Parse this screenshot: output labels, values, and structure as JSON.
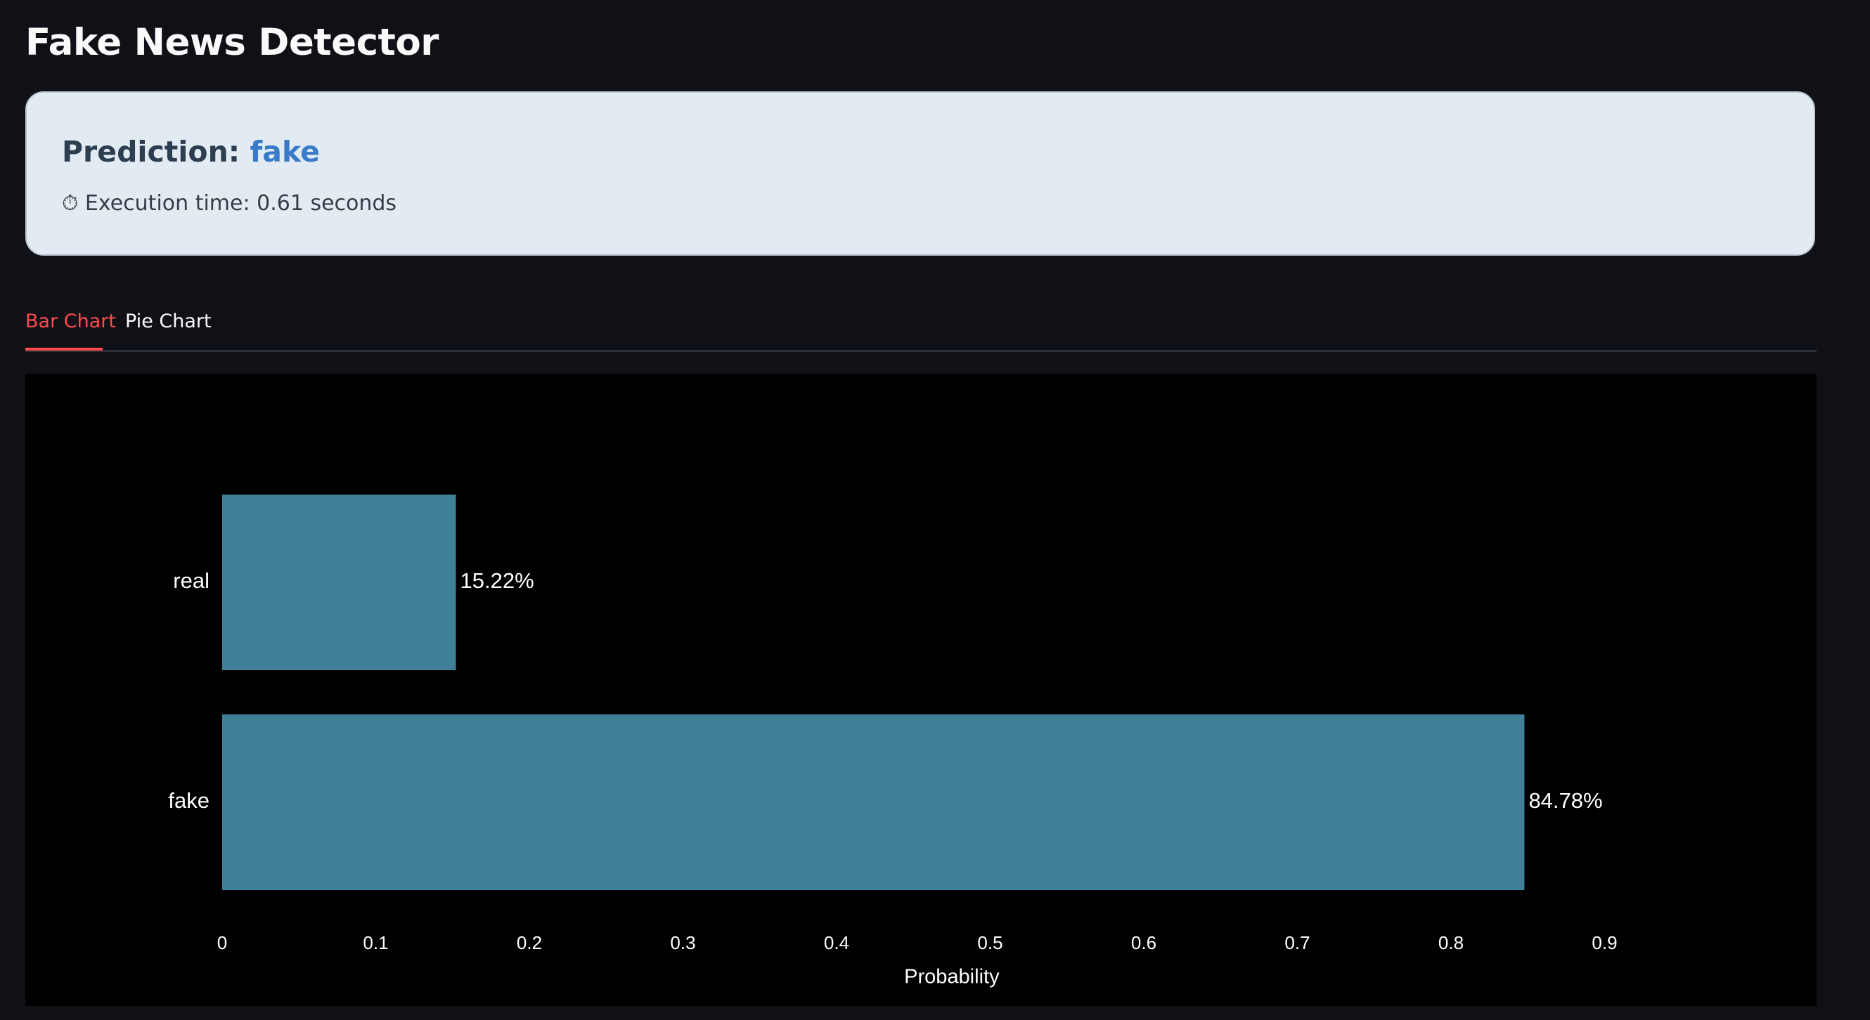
{
  "app": {
    "title": "Fake News Detector"
  },
  "result": {
    "prediction_label": "Prediction:",
    "prediction_value": "fake",
    "execution_icon": "stopwatch-icon",
    "execution_text": "⏱ Execution time: 0.61 seconds"
  },
  "tabs": [
    {
      "label": "Bar Chart",
      "active": true
    },
    {
      "label": "Pie Chart",
      "active": false
    }
  ],
  "colors": {
    "background": "#0f1117",
    "card_background": "#e2eaf2",
    "prediction_accent": "#3a7bc8",
    "tab_active": "#ff4b4b",
    "bar": "#3f7f98",
    "chart_background": "#000000"
  },
  "chart_data": {
    "type": "bar",
    "orientation": "horizontal",
    "categories": [
      "real",
      "fake"
    ],
    "values": [
      0.1522,
      0.8478
    ],
    "data_labels": [
      "15.22%",
      "84.78%"
    ],
    "xlabel": "Probability",
    "ylabel": "",
    "xlim": [
      0,
      0.95
    ],
    "xticks": [
      0,
      0.1,
      0.2,
      0.3,
      0.4,
      0.5,
      0.6,
      0.7,
      0.8,
      0.9
    ],
    "xtick_labels": [
      "0",
      "0.1",
      "0.2",
      "0.3",
      "0.4",
      "0.5",
      "0.6",
      "0.7",
      "0.8",
      "0.9"
    ],
    "grid": false,
    "legend": false
  }
}
